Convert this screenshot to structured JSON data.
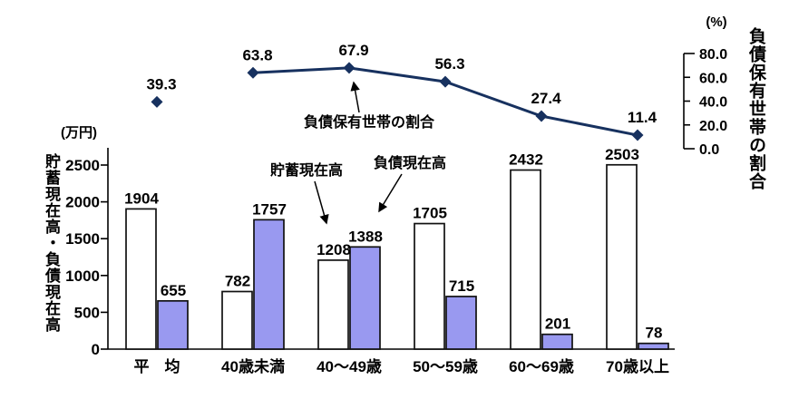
{
  "chart_data": {
    "type": "bar",
    "categories": [
      "平　均",
      "40歳未満",
      "40〜49歳",
      "50〜59歳",
      "60〜69歳",
      "70歳以上"
    ],
    "bar_series": [
      {
        "name": "貯蓄現在高",
        "values": [
          1904,
          782,
          1208,
          1705,
          2432,
          2503
        ],
        "fill": "#ffffff"
      },
      {
        "name": "負債現在高",
        "values": [
          655,
          1757,
          1388,
          715,
          201,
          78
        ],
        "fill": "#9999f0"
      }
    ],
    "line_series": {
      "name": "負債保有世帯の割合",
      "values": [
        39.3,
        63.8,
        67.9,
        56.3,
        27.4,
        11.4
      ],
      "labels": [
        "39.3",
        "63.8",
        "67.9",
        "56.3",
        "27.4",
        "11.4"
      ],
      "connected_from_index": 1
    },
    "left_axis": {
      "unit": "(万円)",
      "title": "貯蓄現在高・負債現在高",
      "ticks": [
        0,
        500,
        1000,
        1500,
        2000,
        2500
      ],
      "min": 0,
      "max": 2500
    },
    "right_axis": {
      "unit": "(%)",
      "title": "負債保有世帯の割合",
      "ticks": [
        "0.0",
        "20.0",
        "40.0",
        "60.0",
        "80.0"
      ],
      "tick_values": [
        0,
        20,
        40,
        60,
        80
      ],
      "min": 0,
      "max": 80
    },
    "annotations": [
      {
        "text": "負債保有世帯の割合",
        "target": "line-series"
      },
      {
        "text": "貯蓄現在高",
        "target": "savings-bar"
      },
      {
        "text": "負債現在高",
        "target": "debt-bar"
      }
    ],
    "grid": false,
    "legend_position": "none"
  },
  "colors": {
    "line": "#17315f",
    "marker": "#17315f",
    "debt_bar_fill": "#9999f0",
    "savings_bar_fill": "#ffffff",
    "bar_border": "#111111",
    "axis": "#000000",
    "text": "#000000"
  }
}
